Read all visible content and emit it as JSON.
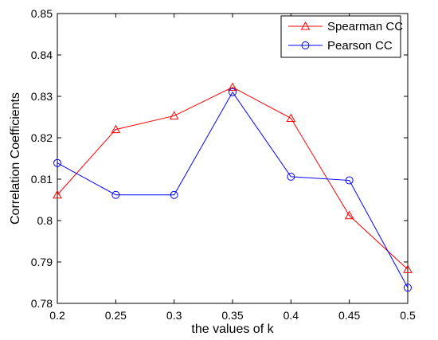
{
  "chart_data": {
    "type": "line",
    "xlabel": "the values of k",
    "ylabel": "Correlation Coefficients",
    "xlim": [
      0.2,
      0.5
    ],
    "ylim": [
      0.78,
      0.85
    ],
    "x_ticks": [
      "0.2",
      "0.25",
      "0.3",
      "0.35",
      "0.4",
      "0.45",
      "0.5"
    ],
    "y_ticks": [
      "0.78",
      "0.79",
      "0.8",
      "0.81",
      "0.82",
      "0.83",
      "0.84",
      "0.85"
    ],
    "grid": false,
    "legend_position": "top-right",
    "x": [
      0.2,
      0.25,
      0.3,
      0.35,
      0.4,
      0.45,
      0.5
    ],
    "series": [
      {
        "name": "Spearman CC",
        "color": "#ff0000",
        "marker": "triangle",
        "values": [
          0.8062,
          0.822,
          0.8253,
          0.8322,
          0.8247,
          0.8012,
          0.7882
        ]
      },
      {
        "name": "Pearson CC",
        "color": "#0000ff",
        "marker": "circle",
        "values": [
          0.8139,
          0.8062,
          0.8062,
          0.831,
          0.8106,
          0.8097,
          0.7838
        ]
      }
    ]
  }
}
